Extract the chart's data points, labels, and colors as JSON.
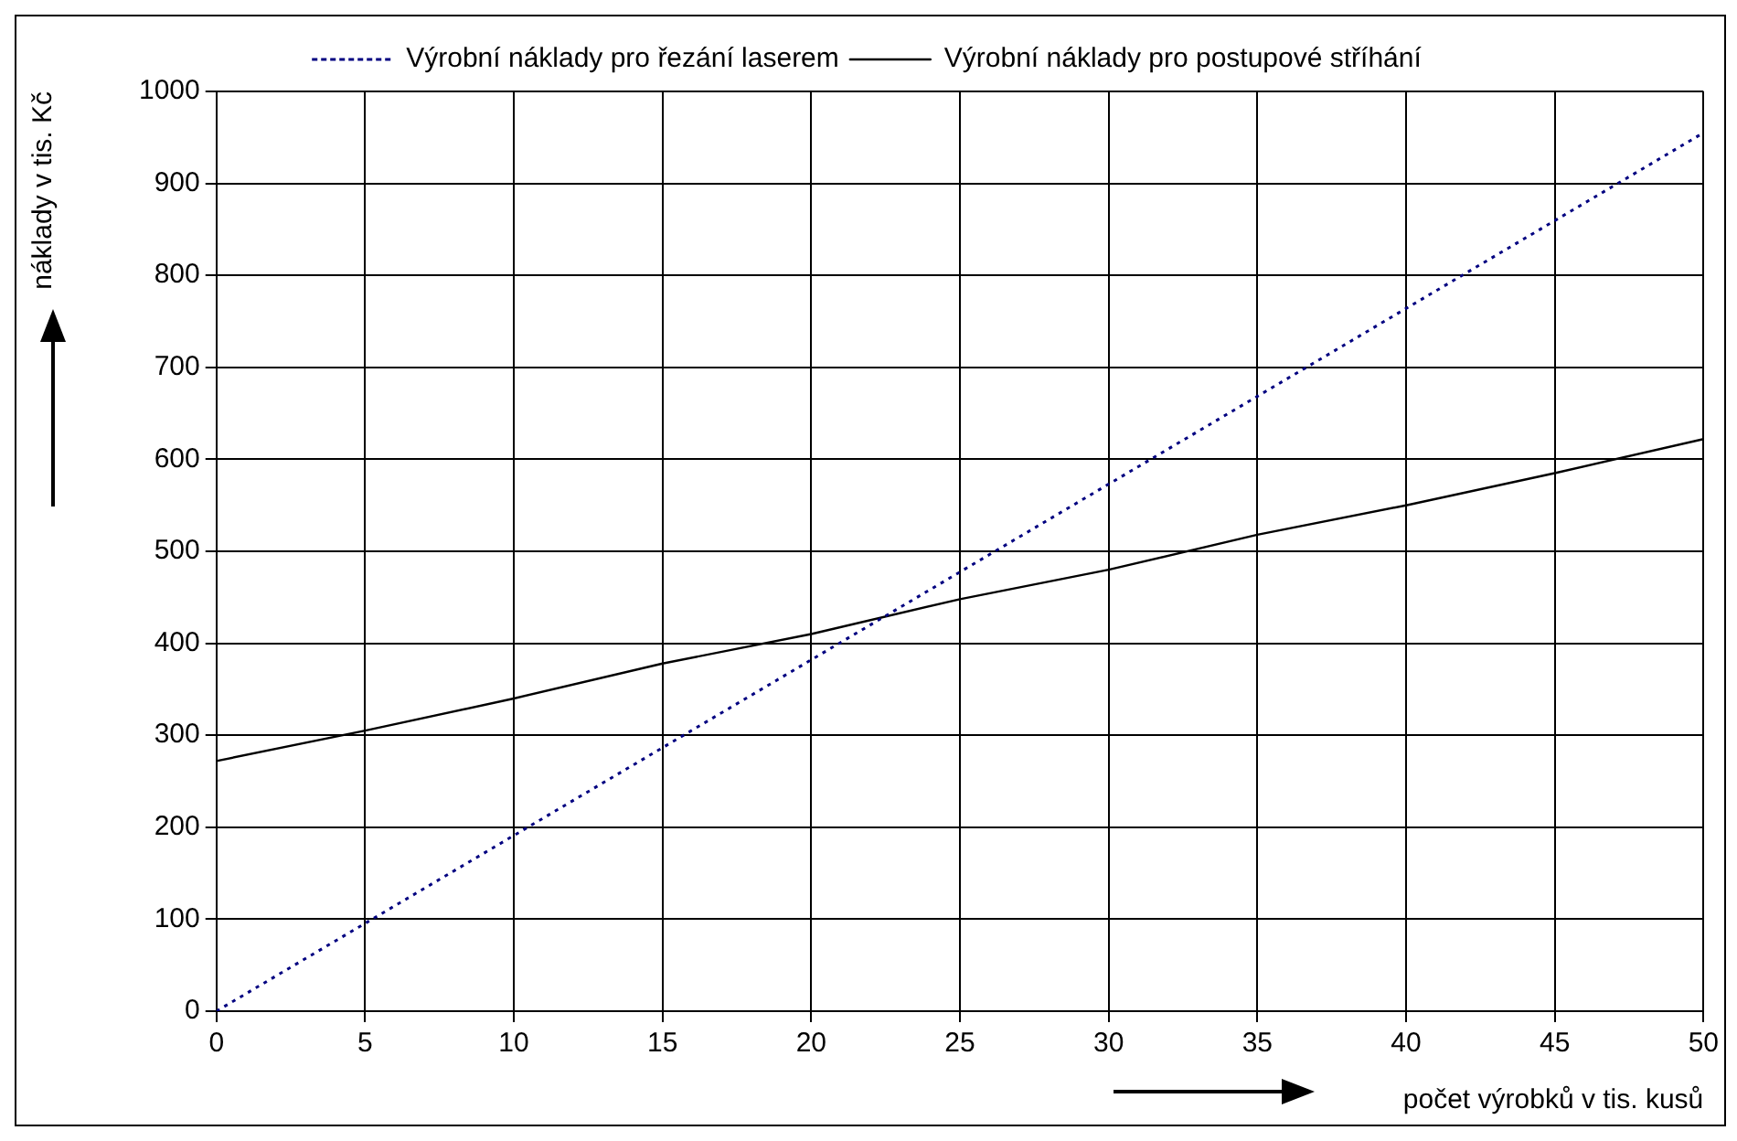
{
  "chart_data": {
    "type": "line",
    "xlabel": "počet výrobků v tis. kusů",
    "ylabel": "náklady v tis. Kč",
    "xlim": [
      0,
      50
    ],
    "xticks": [
      0,
      5,
      10,
      15,
      20,
      25,
      30,
      35,
      40,
      45,
      50
    ],
    "ylim": [
      0,
      1000
    ],
    "yticks": [
      0,
      100,
      200,
      300,
      400,
      500,
      600,
      700,
      800,
      900,
      1000
    ],
    "grid": true,
    "legend": "top",
    "marker": "none",
    "series": [
      {
        "name": "Výrobní náklady pro řezání laserem",
        "color": "#000080",
        "line_style": "dotted",
        "x": [
          0,
          10,
          20,
          30,
          40,
          50
        ],
        "values": [
          0,
          191,
          382,
          573,
          764,
          955
        ]
      },
      {
        "name": "Výrobní náklady pro postupové stříhání",
        "color": "#000000",
        "line_style": "solid",
        "x": [
          0,
          5,
          10,
          15,
          20,
          25,
          30,
          35,
          40,
          45,
          50
        ],
        "values": [
          272,
          305,
          340,
          378,
          410,
          448,
          480,
          518,
          550,
          585,
          622
        ]
      }
    ]
  }
}
